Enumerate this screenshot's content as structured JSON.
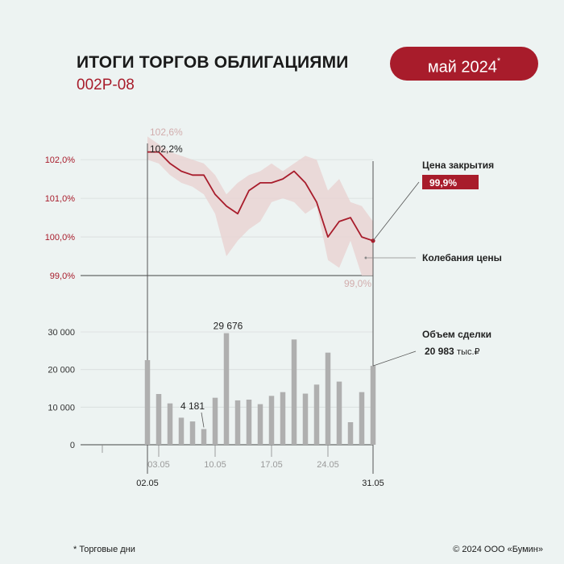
{
  "header": {
    "title": "ИТОГИ ТОРГОВ ОБЛИГАЦИЯМИ",
    "subtitle": "002Р-08",
    "period": "май 2024",
    "period_mark": "*"
  },
  "footer": {
    "footnote": "* Торговые дни",
    "copyright": "© 2024 ООО «Бумин»"
  },
  "colors": {
    "accent": "#a81c2b",
    "band": "#e9d3d3",
    "bars": "#afafaf",
    "band_label": "#d2adad"
  },
  "chart_data": [
    {
      "type": "line",
      "series": [
        {
          "name": "Цена закрытия",
          "values": [
            102.2,
            102.2,
            101.9,
            101.7,
            101.6,
            101.6,
            101.1,
            100.8,
            100.6,
            101.2,
            101.4,
            101.4,
            101.5,
            101.7,
            101.4,
            100.9,
            100.0,
            100.4,
            100.5,
            100.0,
            99.9
          ]
        }
      ],
      "band": {
        "name": "Колебания цены",
        "high": [
          102.6,
          102.4,
          102.2,
          102.1,
          102.0,
          101.9,
          101.6,
          101.1,
          101.4,
          101.6,
          101.7,
          101.9,
          101.7,
          101.9,
          102.1,
          102.0,
          101.2,
          101.5,
          100.9,
          100.8,
          100.4
        ],
        "low": [
          102.0,
          101.9,
          101.6,
          101.4,
          101.3,
          101.1,
          100.6,
          99.5,
          99.9,
          100.2,
          100.4,
          100.9,
          101.0,
          100.9,
          100.6,
          100.8,
          99.4,
          99.2,
          99.9,
          99.0,
          99.0
        ]
      },
      "yticks": [
        "102,0%",
        "101,0%",
        "100,0%",
        "99,0%"
      ],
      "ytick_values": [
        102,
        101,
        100,
        99
      ],
      "ylim": [
        99.0,
        102.9
      ],
      "annotations": {
        "band_max": "102,6%",
        "start": "102,2%",
        "band_min": "99,0%"
      },
      "last_close": {
        "label": "Цена закрытия",
        "value": "99,9%"
      },
      "band_label": "Колебания цены"
    },
    {
      "type": "bar",
      "values": [
        22500,
        13500,
        11000,
        7200,
        6200,
        4181,
        12500,
        29676,
        11800,
        12000,
        10800,
        13000,
        14000,
        28000,
        13600,
        16000,
        24500,
        16800,
        6000,
        14000,
        20983
      ],
      "ylim": [
        0,
        30000
      ],
      "yticks": [
        "30 000",
        "20 000",
        "10 000",
        "0"
      ],
      "ytick_values": [
        30000,
        20000,
        10000,
        0
      ],
      "labels": {
        "max": "29 676",
        "min": "4 181"
      },
      "volume": {
        "label": "Объем сделки",
        "value": "20 983",
        "unit": "тыс.₽"
      }
    }
  ],
  "xaxis": {
    "mid_ticks": [
      "03.05",
      "10.05",
      "17.05",
      "24.05"
    ],
    "start": "02.05",
    "end": "31.05"
  }
}
